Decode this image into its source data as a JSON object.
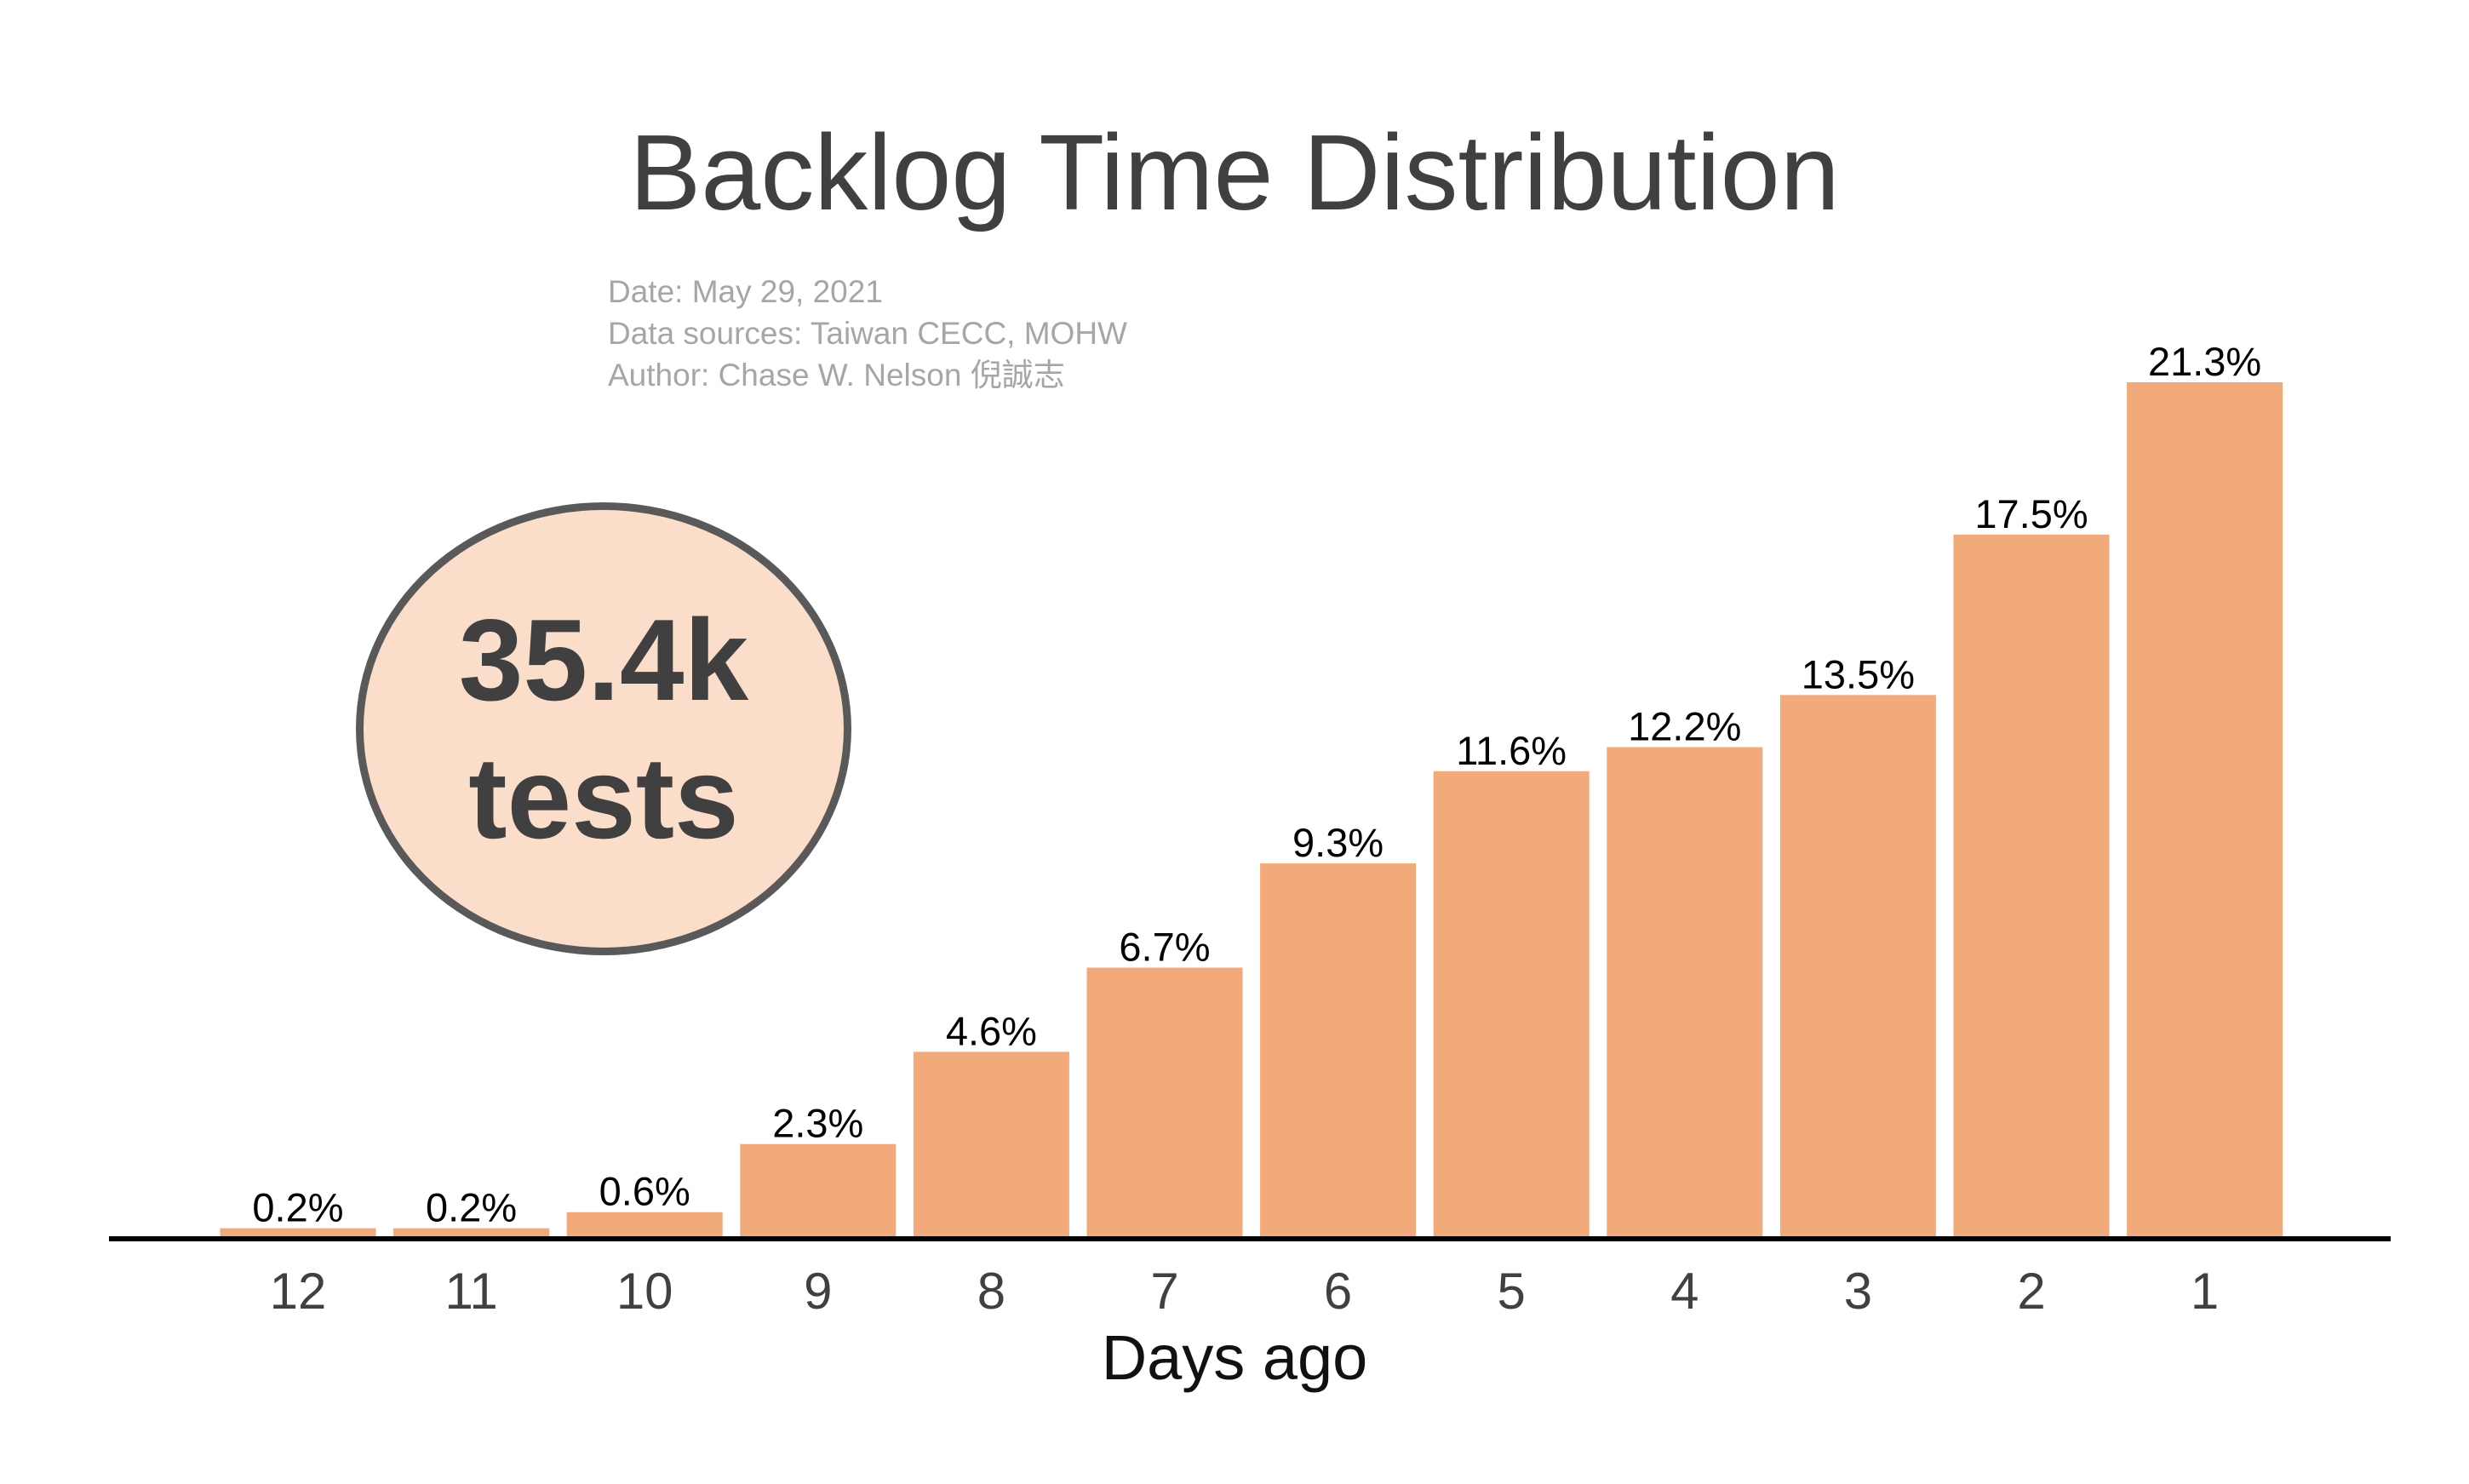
{
  "title": "Backlog Time Distribution",
  "meta": {
    "date": "Date: May 29, 2021",
    "sources": "Data sources: Taiwan CECC, MOHW",
    "author": "Author: Chase W. Nelson 倪誠志"
  },
  "callout": {
    "value": "35.4k",
    "unit": "tests"
  },
  "colors": {
    "bar": "#f3aa7a",
    "axis": "#000000",
    "title": "#404040",
    "meta": "#a6a6a6",
    "badge_fill": "#fadec9",
    "badge_stroke": "#595959"
  },
  "chart_data": {
    "type": "bar",
    "title": "Backlog Time Distribution",
    "xlabel": "Days ago",
    "ylabel": "",
    "categories": [
      "12",
      "11",
      "10",
      "9",
      "8",
      "7",
      "6",
      "5",
      "4",
      "3",
      "2",
      "1"
    ],
    "values": [
      0.2,
      0.2,
      0.6,
      2.3,
      4.6,
      6.7,
      9.3,
      11.6,
      12.2,
      13.5,
      17.5,
      21.3
    ],
    "value_labels": [
      "0.2%",
      "0.2%",
      "0.6%",
      "2.3%",
      "4.6%",
      "6.7%",
      "9.3%",
      "11.6%",
      "12.2%",
      "13.5%",
      "17.5%",
      "21.3%"
    ],
    "ylim": [
      0,
      21.3
    ],
    "grid": false,
    "legend": "none"
  }
}
